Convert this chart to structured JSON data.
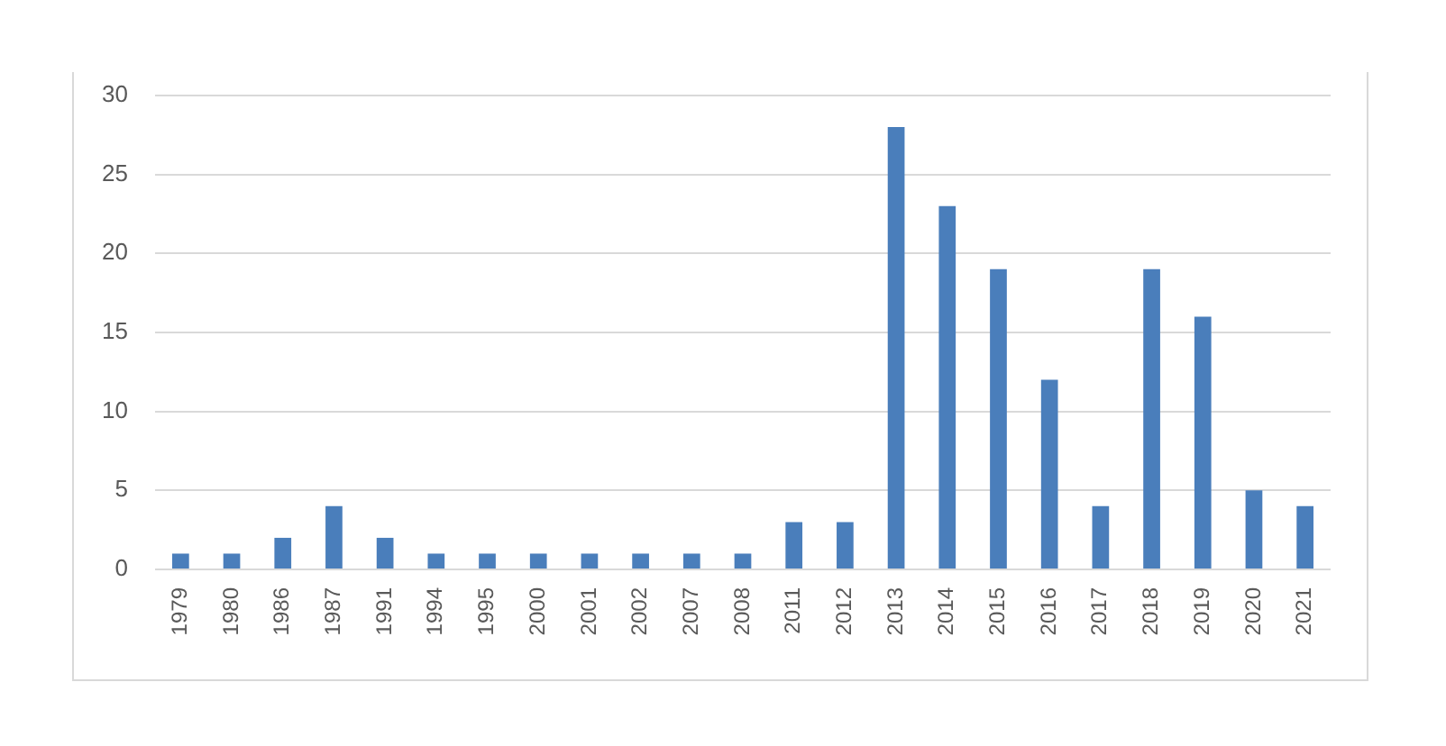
{
  "chart_data": {
    "type": "bar",
    "categories": [
      "1979",
      "1980",
      "1986",
      "1987",
      "1991",
      "1994",
      "1995",
      "2000",
      "2001",
      "2002",
      "2007",
      "2008",
      "2011",
      "2012",
      "2013",
      "2014",
      "2015",
      "2016",
      "2017",
      "2018",
      "2019",
      "2020",
      "2021"
    ],
    "values": [
      1,
      1,
      2,
      4,
      2,
      1,
      1,
      1,
      1,
      1,
      1,
      1,
      3,
      3,
      28,
      23,
      19,
      12,
      4,
      19,
      16,
      5,
      4
    ],
    "color": "#4a7ebb",
    "ylim": [
      0,
      30
    ],
    "yticks": [
      0,
      5,
      10,
      15,
      20,
      25,
      30
    ],
    "grid": "y"
  }
}
